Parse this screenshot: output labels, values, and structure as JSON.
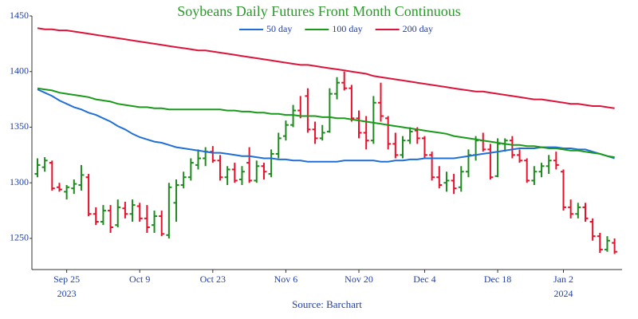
{
  "chart_data": {
    "type": "ohlc",
    "title": "Soybeans Daily Futures Front Month Continuous",
    "source": "Source: Barchart",
    "categories": [
      "2023-09-19",
      "2023-09-20",
      "2023-09-21",
      "2023-09-22",
      "2023-09-25",
      "2023-09-26",
      "2023-09-27",
      "2023-09-28",
      "2023-09-29",
      "2023-10-02",
      "2023-10-03",
      "2023-10-04",
      "2023-10-05",
      "2023-10-06",
      "2023-10-09",
      "2023-10-10",
      "2023-10-11",
      "2023-10-12",
      "2023-10-13",
      "2023-10-16",
      "2023-10-17",
      "2023-10-18",
      "2023-10-19",
      "2023-10-20",
      "2023-10-23",
      "2023-10-24",
      "2023-10-25",
      "2023-10-26",
      "2023-10-27",
      "2023-10-30",
      "2023-10-31",
      "2023-11-01",
      "2023-11-02",
      "2023-11-03",
      "2023-11-06",
      "2023-11-07",
      "2023-11-08",
      "2023-11-09",
      "2023-11-10",
      "2023-11-13",
      "2023-11-14",
      "2023-11-15",
      "2023-11-16",
      "2023-11-17",
      "2023-11-20",
      "2023-11-21",
      "2023-11-22",
      "2023-11-24",
      "2023-11-27",
      "2023-11-28",
      "2023-11-29",
      "2023-11-30",
      "2023-12-01",
      "2023-12-04",
      "2023-12-05",
      "2023-12-06",
      "2023-12-07",
      "2023-12-08",
      "2023-12-11",
      "2023-12-12",
      "2023-12-13",
      "2023-12-14",
      "2023-12-15",
      "2023-12-18",
      "2023-12-19",
      "2023-12-20",
      "2023-12-21",
      "2023-12-22",
      "2023-12-26",
      "2023-12-27",
      "2023-12-28",
      "2023-12-29",
      "2024-01-02",
      "2024-01-03",
      "2024-01-04",
      "2024-01-05",
      "2024-01-08",
      "2024-01-09",
      "2024-01-10",
      "2024-01-11"
    ],
    "series": [
      {
        "type": "ohlc",
        "up_color": "#1f8a1f",
        "down_color": "#e8102a",
        "open": [
          1308,
          1314,
          1318,
          1296,
          1292,
          1295,
          1298,
          1305,
          1272,
          1265,
          1275,
          1262,
          1277,
          1272,
          1279,
          1268,
          1262,
          1270,
          1253,
          1282,
          1298,
          1305,
          1316,
          1322,
          1328,
          1320,
          1305,
          1312,
          1303,
          1318,
          1302,
          1315,
          1308,
          1326,
          1342,
          1352,
          1365,
          1378,
          1348,
          1340,
          1346,
          1380,
          1390,
          1385,
          1358,
          1345,
          1338,
          1372,
          1358,
          1335,
          1325,
          1338,
          1347,
          1340,
          1325,
          1305,
          1300,
          1302,
          1296,
          1310,
          1325,
          1338,
          1330,
          1306,
          1335,
          1338,
          1325,
          1320,
          1302,
          1310,
          1315,
          1320,
          1310,
          1278,
          1272,
          1278,
          1265,
          1252,
          1240,
          1246
        ],
        "high": [
          1322,
          1323,
          1320,
          1300,
          1298,
          1303,
          1316,
          1308,
          1278,
          1280,
          1280,
          1285,
          1283,
          1285,
          1282,
          1280,
          1275,
          1275,
          1300,
          1303,
          1310,
          1322,
          1330,
          1332,
          1333,
          1325,
          1315,
          1318,
          1315,
          1332,
          1320,
          1318,
          1330,
          1345,
          1356,
          1370,
          1378,
          1385,
          1355,
          1352,
          1385,
          1395,
          1400,
          1388,
          1365,
          1360,
          1378,
          1390,
          1360,
          1345,
          1342,
          1350,
          1350,
          1342,
          1328,
          1315,
          1310,
          1308,
          1315,
          1330,
          1342,
          1345,
          1335,
          1340,
          1340,
          1342,
          1330,
          1322,
          1315,
          1318,
          1325,
          1328,
          1312,
          1285,
          1282,
          1282,
          1268,
          1255,
          1252,
          1250
        ],
        "low": [
          1305,
          1310,
          1293,
          1292,
          1285,
          1290,
          1293,
          1270,
          1262,
          1262,
          1255,
          1260,
          1268,
          1265,
          1265,
          1255,
          1255,
          1252,
          1250,
          1265,
          1295,
          1302,
          1312,
          1315,
          1318,
          1302,
          1298,
          1300,
          1298,
          1300,
          1300,
          1303,
          1305,
          1322,
          1338,
          1350,
          1358,
          1345,
          1335,
          1338,
          1345,
          1375,
          1383,
          1355,
          1340,
          1330,
          1335,
          1355,
          1330,
          1322,
          1322,
          1335,
          1335,
          1322,
          1302,
          1295,
          1292,
          1290,
          1292,
          1305,
          1320,
          1328,
          1303,
          1305,
          1328,
          1322,
          1318,
          1300,
          1298,
          1305,
          1308,
          1312,
          1275,
          1268,
          1268,
          1265,
          1248,
          1237,
          1238,
          1236
        ],
        "close": [
          1316,
          1320,
          1295,
          1294,
          1296,
          1299,
          1307,
          1272,
          1265,
          1275,
          1260,
          1278,
          1272,
          1280,
          1268,
          1260,
          1270,
          1254,
          1296,
          1298,
          1305,
          1318,
          1322,
          1328,
          1320,
          1305,
          1312,
          1302,
          1310,
          1302,
          1315,
          1310,
          1326,
          1340,
          1352,
          1365,
          1360,
          1348,
          1340,
          1345,
          1380,
          1390,
          1385,
          1358,
          1345,
          1338,
          1372,
          1360,
          1335,
          1325,
          1338,
          1346,
          1340,
          1325,
          1305,
          1298,
          1302,
          1295,
          1310,
          1325,
          1338,
          1330,
          1305,
          1335,
          1338,
          1325,
          1320,
          1302,
          1310,
          1315,
          1320,
          1316,
          1278,
          1272,
          1278,
          1268,
          1252,
          1240,
          1248,
          1238
        ]
      },
      {
        "type": "line",
        "name": "50 day",
        "color": "#1f6fd6",
        "values": [
          1384,
          1381,
          1378,
          1374,
          1371,
          1368,
          1366,
          1363,
          1361,
          1358,
          1355,
          1351,
          1348,
          1344,
          1341,
          1339,
          1337,
          1336,
          1334,
          1332,
          1331,
          1330,
          1329,
          1328,
          1327,
          1327,
          1326,
          1325,
          1324,
          1324,
          1323,
          1322,
          1322,
          1321,
          1321,
          1320,
          1320,
          1319,
          1319,
          1319,
          1319,
          1319,
          1320,
          1320,
          1320,
          1320,
          1320,
          1319,
          1319,
          1320,
          1320,
          1321,
          1321,
          1322,
          1322,
          1322,
          1322,
          1322,
          1323,
          1324,
          1325,
          1326,
          1327,
          1328,
          1329,
          1330,
          1331,
          1331,
          1331,
          1332,
          1332,
          1332,
          1331,
          1331,
          1330,
          1330,
          1328,
          1326,
          1324,
          1322
        ]
      },
      {
        "type": "line",
        "name": "100 day",
        "color": "#1a9a1a",
        "values": [
          1385,
          1384,
          1383,
          1381,
          1380,
          1379,
          1378,
          1377,
          1375,
          1374,
          1373,
          1371,
          1370,
          1369,
          1368,
          1368,
          1367,
          1367,
          1366,
          1366,
          1366,
          1366,
          1366,
          1366,
          1366,
          1366,
          1365,
          1365,
          1364,
          1364,
          1363,
          1363,
          1362,
          1362,
          1361,
          1361,
          1360,
          1360,
          1360,
          1359,
          1359,
          1358,
          1358,
          1357,
          1356,
          1355,
          1354,
          1353,
          1352,
          1351,
          1350,
          1349,
          1348,
          1347,
          1346,
          1345,
          1344,
          1342,
          1341,
          1340,
          1339,
          1338,
          1337,
          1336,
          1335,
          1334,
          1334,
          1333,
          1333,
          1332,
          1331,
          1331,
          1330,
          1329,
          1329,
          1328,
          1327,
          1326,
          1324,
          1323
        ]
      },
      {
        "type": "line",
        "name": "200 day",
        "color": "#dc143c",
        "values": [
          1439,
          1438,
          1438,
          1437,
          1437,
          1436,
          1435,
          1434,
          1433,
          1432,
          1431,
          1430,
          1429,
          1428,
          1427,
          1426,
          1425,
          1424,
          1423,
          1422,
          1421,
          1420,
          1419,
          1419,
          1418,
          1417,
          1416,
          1415,
          1414,
          1413,
          1412,
          1411,
          1410,
          1409,
          1408,
          1407,
          1406,
          1406,
          1405,
          1404,
          1403,
          1402,
          1401,
          1400,
          1399,
          1398,
          1396,
          1395,
          1394,
          1393,
          1392,
          1391,
          1390,
          1389,
          1388,
          1387,
          1386,
          1385,
          1384,
          1383,
          1382,
          1382,
          1381,
          1380,
          1379,
          1378,
          1377,
          1376,
          1375,
          1375,
          1374,
          1373,
          1372,
          1371,
          1371,
          1370,
          1369,
          1369,
          1368,
          1367
        ]
      }
    ],
    "ylim": [
      1222,
      1450
    ],
    "yticks": [
      1250,
      1300,
      1350,
      1400,
      1450
    ],
    "xticks": [
      {
        "value": "2023-09-25",
        "label": "Sep 25"
      },
      {
        "value": "2023-10-09",
        "label": "Oct 9"
      },
      {
        "value": "2023-10-23",
        "label": "Oct 23"
      },
      {
        "value": "2023-11-06",
        "label": "Nov 6"
      },
      {
        "value": "2023-11-20",
        "label": "Nov 20"
      },
      {
        "value": "2023-12-04",
        "label": "Dec 4"
      },
      {
        "value": "2023-12-18",
        "label": "Dec 18"
      },
      {
        "value": "2024-01-02",
        "label": "Jan 2"
      }
    ],
    "xtick_years": [
      {
        "value": "2023-09-25",
        "label": "2023"
      },
      {
        "value": "2024-01-02",
        "label": "2024"
      }
    ],
    "grid": false,
    "legend": "top"
  }
}
